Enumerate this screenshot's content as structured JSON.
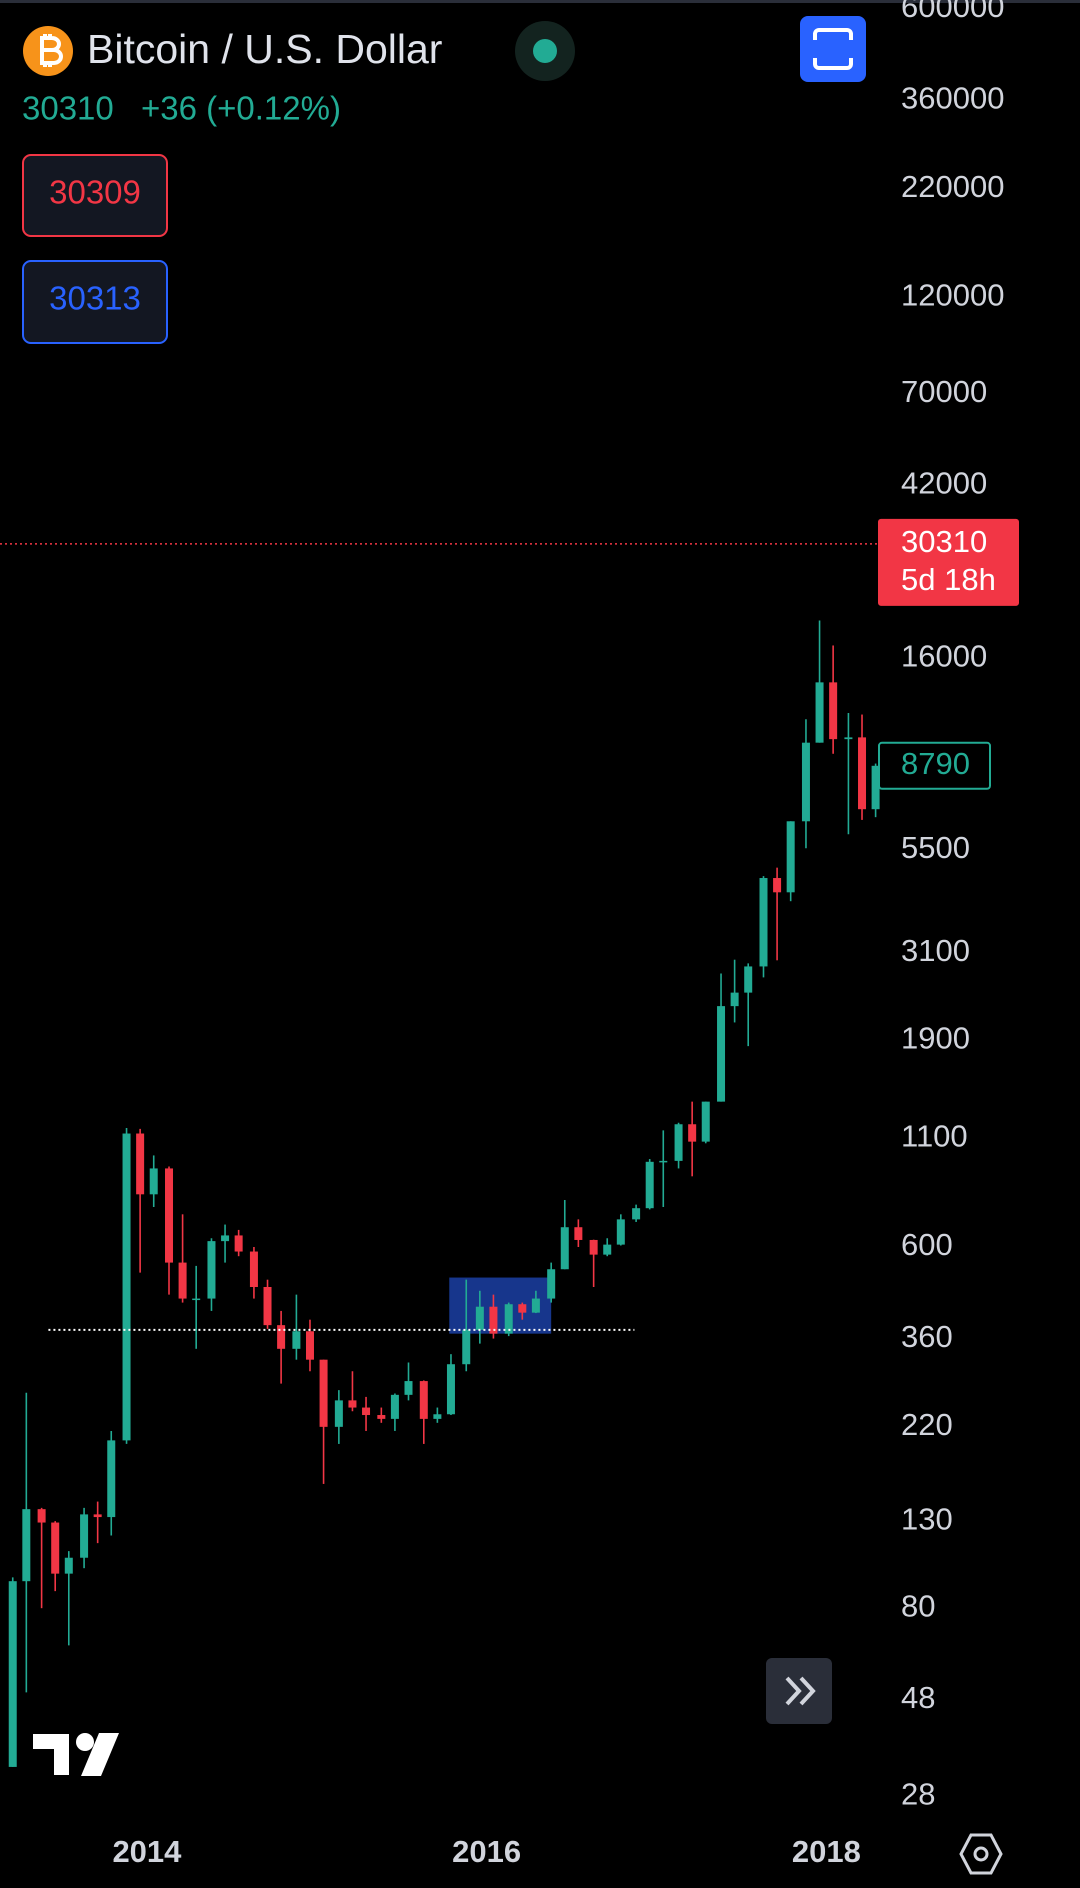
{
  "header": {
    "title": "Bitcoin / U.S. Dollar",
    "change": "+36 (+0.12%)",
    "bid": 30309,
    "ask": 30313
  },
  "chart_data": {
    "type": "candlestick",
    "log_scale": true,
    "up_color": "#22ab94",
    "down_color": "#f23645",
    "xlim": [
      2013.135,
      2018.31
    ],
    "xticks": [
      2014,
      2016,
      2018
    ],
    "ylim": [
      24,
      630000
    ],
    "yticks": [
      600000,
      360000,
      220000,
      120000,
      70000,
      42000,
      16000,
      5500,
      3100,
      1900,
      1100,
      600,
      360,
      220,
      130,
      80,
      48,
      28
    ],
    "last_price": 30310,
    "countdown": "5d 18h",
    "hline": {
      "value": 378,
      "x": [
        2013.42,
        2016.87
      ]
    },
    "rectangle": {
      "x": [
        2015.78,
        2016.38
      ],
      "y": [
        370,
        506
      ],
      "color": "#2962ff"
    },
    "x": [
      2013.21,
      2013.29,
      2013.38,
      2013.46,
      2013.54,
      2013.63,
      2013.71,
      2013.79,
      2013.88,
      2013.96,
      2014.04,
      2014.13,
      2014.21,
      2014.29,
      2014.38,
      2014.46,
      2014.54,
      2014.63,
      2014.71,
      2014.79,
      2014.88,
      2014.96,
      2015.04,
      2015.13,
      2015.21,
      2015.29,
      2015.38,
      2015.46,
      2015.54,
      2015.63,
      2015.71,
      2015.79,
      2015.88,
      2015.96,
      2016.04,
      2016.13,
      2016.21,
      2016.29,
      2016.38,
      2016.46,
      2016.54,
      2016.63,
      2016.71,
      2016.79,
      2016.88,
      2016.96,
      2017.04,
      2017.13,
      2017.21,
      2017.29,
      2017.38,
      2017.46,
      2017.54,
      2017.63,
      2017.71,
      2017.79,
      2017.88,
      2017.96,
      2018.04,
      2018.13,
      2018.21,
      2018.29
    ],
    "open": [
      33,
      93,
      139,
      129,
      97,
      106,
      135,
      133,
      204,
      1130,
      805,
      930,
      550,
      450,
      450,
      620,
      640,
      585,
      480,
      388,
      340,
      375,
      320,
      220,
      255,
      245,
      235,
      230,
      263,
      284,
      230,
      236,
      312,
      378,
      430,
      370,
      436,
      416,
      450,
      530,
      670,
      624,
      575,
      608,
      700,
      745,
      965,
      970,
      1190,
      1080,
      1350,
      2300,
      2480,
      2870,
      4700,
      4340,
      6450,
      10000,
      14000,
      10200,
      10300,
      6900
    ],
    "high": [
      95,
      266,
      140,
      130,
      110,
      140,
      145,
      215,
      1165,
      1160,
      1000,
      940,
      720,
      540,
      630,
      680,
      660,
      600,
      500,
      420,
      460,
      400,
      320,
      270,
      300,
      260,
      245,
      265,
      315,
      285,
      245,
      330,
      500,
      470,
      460,
      440,
      440,
      470,
      550,
      780,
      700,
      625,
      630,
      720,
      760,
      980,
      1150,
      1200,
      1350,
      1350,
      2760,
      2980,
      2920,
      4750,
      4980,
      6450,
      11400,
      19770,
      17200,
      11800,
      11700,
      8900
    ],
    "low": [
      33,
      50,
      80,
      88,
      65,
      100,
      115,
      120,
      200,
      520,
      750,
      460,
      440,
      340,
      420,
      550,
      570,
      450,
      380,
      280,
      320,
      300,
      160,
      200,
      240,
      215,
      225,
      215,
      255,
      200,
      225,
      235,
      300,
      350,
      360,
      365,
      400,
      415,
      440,
      530,
      600,
      480,
      570,
      605,
      690,
      740,
      750,
      930,
      890,
      1070,
      1350,
      2100,
      1840,
      2700,
      2970,
      4130,
      5550,
      10000,
      9400,
      6000,
      6500,
      6600
    ],
    "close": [
      93,
      139,
      129,
      97,
      106,
      135,
      133,
      204,
      1130,
      805,
      930,
      550,
      450,
      450,
      620,
      640,
      585,
      480,
      388,
      340,
      375,
      320,
      220,
      255,
      245,
      235,
      230,
      263,
      284,
      230,
      236,
      312,
      378,
      430,
      370,
      436,
      416,
      450,
      530,
      670,
      624,
      575,
      608,
      700,
      745,
      965,
      970,
      1190,
      1080,
      1350,
      2300,
      2480,
      2870,
      4700,
      4340,
      6450,
      10000,
      14000,
      10200,
      10300,
      6900,
      8790
    ]
  }
}
